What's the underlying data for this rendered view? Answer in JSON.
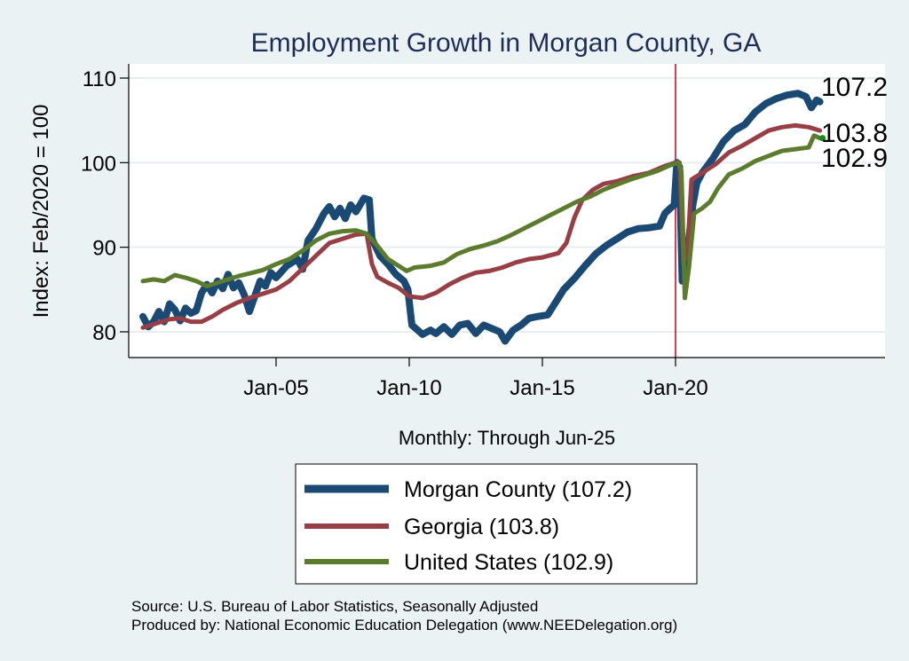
{
  "chart_data": {
    "type": "line",
    "title": "Employment Growth in Morgan  County, GA",
    "xlabel": "Monthly: Through Jun-25",
    "ylabel": "Index: Feb/2020 = 100",
    "ylim": [
      77.5,
      111.5
    ],
    "xlim": [
      1999.0,
      2027.42
    ],
    "yticks": [
      80,
      90,
      100,
      110
    ],
    "xticks": [
      {
        "label": "Jan-05",
        "value": 2005.0
      },
      {
        "label": "Jan-10",
        "value": 2010.0
      },
      {
        "label": "Jan-15",
        "value": 2015.0
      },
      {
        "label": "Jan-20",
        "value": 2020.0
      }
    ],
    "grid": true,
    "reference_line": {
      "x": 2020.0,
      "color": "#c8102e"
    },
    "legend_position": "bottom",
    "series": [
      {
        "name": "Morgan  County",
        "legend_label": "Morgan  County (107.2)",
        "end_value": "107.2",
        "color": "#1a4a73",
        "points": [
          [
            2000.0,
            81.8
          ],
          [
            2000.2,
            80.6
          ],
          [
            2000.4,
            81.2
          ],
          [
            2000.6,
            82.4
          ],
          [
            2000.8,
            81.2
          ],
          [
            2001.0,
            83.3
          ],
          [
            2001.2,
            82.6
          ],
          [
            2001.4,
            81.3
          ],
          [
            2001.6,
            82.8
          ],
          [
            2001.8,
            82.2
          ],
          [
            2002.0,
            82.5
          ],
          [
            2002.2,
            84.6
          ],
          [
            2002.4,
            85.6
          ],
          [
            2002.6,
            84.6
          ],
          [
            2002.8,
            86.0
          ],
          [
            2003.0,
            85.1
          ],
          [
            2003.2,
            86.8
          ],
          [
            2003.4,
            85.2
          ],
          [
            2003.6,
            85.8
          ],
          [
            2003.8,
            84.4
          ],
          [
            2004.0,
            82.4
          ],
          [
            2004.2,
            84.2
          ],
          [
            2004.4,
            86.0
          ],
          [
            2004.6,
            85.4
          ],
          [
            2004.8,
            87.0
          ],
          [
            2005.0,
            86.4
          ],
          [
            2005.4,
            87.8
          ],
          [
            2005.8,
            88.6
          ],
          [
            2006.0,
            87.4
          ],
          [
            2006.2,
            90.8
          ],
          [
            2006.5,
            92.2
          ],
          [
            2006.8,
            94.0
          ],
          [
            2007.0,
            94.8
          ],
          [
            2007.2,
            93.6
          ],
          [
            2007.4,
            94.6
          ],
          [
            2007.6,
            93.4
          ],
          [
            2007.8,
            95.0
          ],
          [
            2008.0,
            94.2
          ],
          [
            2008.3,
            95.8
          ],
          [
            2008.5,
            95.6
          ],
          [
            2008.6,
            91.0
          ],
          [
            2008.9,
            89.0
          ],
          [
            2009.2,
            88.0
          ],
          [
            2009.5,
            86.8
          ],
          [
            2009.8,
            86.0
          ],
          [
            2009.95,
            85.0
          ],
          [
            2010.1,
            80.8
          ],
          [
            2010.5,
            79.7
          ],
          [
            2010.8,
            80.2
          ],
          [
            2011.0,
            79.8
          ],
          [
            2011.3,
            80.6
          ],
          [
            2011.6,
            79.7
          ],
          [
            2011.9,
            80.8
          ],
          [
            2012.2,
            81.0
          ],
          [
            2012.5,
            79.8
          ],
          [
            2012.8,
            80.8
          ],
          [
            2013.1,
            80.4
          ],
          [
            2013.4,
            80.0
          ],
          [
            2013.6,
            78.9
          ],
          [
            2013.9,
            80.2
          ],
          [
            2014.2,
            80.8
          ],
          [
            2014.5,
            81.6
          ],
          [
            2014.8,
            81.8
          ],
          [
            2015.2,
            82.0
          ],
          [
            2015.5,
            83.5
          ],
          [
            2015.8,
            85.0
          ],
          [
            2016.2,
            86.3
          ],
          [
            2016.6,
            87.8
          ],
          [
            2017.0,
            89.2
          ],
          [
            2017.4,
            90.2
          ],
          [
            2017.8,
            91.0
          ],
          [
            2018.2,
            91.8
          ],
          [
            2018.6,
            92.2
          ],
          [
            2019.0,
            92.3
          ],
          [
            2019.4,
            92.5
          ],
          [
            2019.6,
            94.0
          ],
          [
            2019.8,
            94.6
          ],
          [
            2019.95,
            95.0
          ],
          [
            2020.05,
            100.0
          ],
          [
            2020.15,
            99.5
          ],
          [
            2020.25,
            86.0
          ],
          [
            2020.35,
            89.0
          ],
          [
            2020.5,
            91.0
          ],
          [
            2020.65,
            95.0
          ],
          [
            2020.8,
            97.6
          ],
          [
            2021.0,
            98.8
          ],
          [
            2021.4,
            100.5
          ],
          [
            2021.8,
            102.5
          ],
          [
            2022.2,
            103.8
          ],
          [
            2022.6,
            104.5
          ],
          [
            2023.0,
            106.0
          ],
          [
            2023.4,
            107.0
          ],
          [
            2023.8,
            107.6
          ],
          [
            2024.2,
            108.0
          ],
          [
            2024.6,
            108.2
          ],
          [
            2024.9,
            107.8
          ],
          [
            2025.1,
            106.5
          ],
          [
            2025.3,
            107.4
          ],
          [
            2025.42,
            107.2
          ]
        ]
      },
      {
        "name": "Georgia",
        "legend_label": "Georgia (103.8)",
        "end_value": "103.8",
        "color": "#983f46",
        "points": [
          [
            2000.0,
            80.5
          ],
          [
            2000.5,
            81.0
          ],
          [
            2001.0,
            81.5
          ],
          [
            2001.4,
            81.6
          ],
          [
            2001.8,
            81.2
          ],
          [
            2002.2,
            81.2
          ],
          [
            2002.6,
            81.8
          ],
          [
            2003.0,
            82.6
          ],
          [
            2003.5,
            83.4
          ],
          [
            2004.0,
            84.0
          ],
          [
            2004.5,
            84.5
          ],
          [
            2005.0,
            85.0
          ],
          [
            2005.5,
            86.0
          ],
          [
            2006.0,
            87.5
          ],
          [
            2006.5,
            89.0
          ],
          [
            2007.0,
            90.5
          ],
          [
            2007.5,
            91.0
          ],
          [
            2008.0,
            91.5
          ],
          [
            2008.4,
            91.6
          ],
          [
            2008.6,
            88.0
          ],
          [
            2008.8,
            86.5
          ],
          [
            2009.2,
            85.8
          ],
          [
            2009.6,
            85.2
          ],
          [
            2010.0,
            84.2
          ],
          [
            2010.5,
            84.0
          ],
          [
            2011.0,
            84.6
          ],
          [
            2011.5,
            85.6
          ],
          [
            2012.0,
            86.4
          ],
          [
            2012.5,
            87.0
          ],
          [
            2013.0,
            87.2
          ],
          [
            2013.5,
            87.6
          ],
          [
            2014.0,
            88.2
          ],
          [
            2014.5,
            88.6
          ],
          [
            2015.0,
            88.8
          ],
          [
            2015.6,
            89.3
          ],
          [
            2015.9,
            90.5
          ],
          [
            2016.2,
            93.5
          ],
          [
            2016.5,
            95.6
          ],
          [
            2016.9,
            96.8
          ],
          [
            2017.3,
            97.5
          ],
          [
            2017.8,
            97.8
          ],
          [
            2018.4,
            98.4
          ],
          [
            2019.0,
            98.8
          ],
          [
            2019.6,
            99.6
          ],
          [
            2020.0,
            100.0
          ],
          [
            2020.15,
            100.0
          ],
          [
            2020.3,
            88.0
          ],
          [
            2020.45,
            89.5
          ],
          [
            2020.6,
            98.0
          ],
          [
            2021.0,
            98.8
          ],
          [
            2021.5,
            99.8
          ],
          [
            2022.0,
            101.2
          ],
          [
            2022.5,
            102.0
          ],
          [
            2023.0,
            102.9
          ],
          [
            2023.5,
            103.8
          ],
          [
            2024.0,
            104.2
          ],
          [
            2024.5,
            104.4
          ],
          [
            2025.0,
            104.2
          ],
          [
            2025.42,
            103.8
          ]
        ]
      },
      {
        "name": "United States",
        "legend_label": "United States (102.9)",
        "end_value": "102.9",
        "color": "#5b7b2d",
        "points": [
          [
            2000.0,
            86.0
          ],
          [
            2000.4,
            86.2
          ],
          [
            2000.8,
            86.0
          ],
          [
            2001.2,
            86.7
          ],
          [
            2001.6,
            86.4
          ],
          [
            2002.0,
            86.0
          ],
          [
            2002.4,
            85.4
          ],
          [
            2002.8,
            85.8
          ],
          [
            2003.2,
            86.2
          ],
          [
            2003.6,
            86.6
          ],
          [
            2004.0,
            86.9
          ],
          [
            2004.5,
            87.3
          ],
          [
            2005.0,
            88.0
          ],
          [
            2005.5,
            88.6
          ],
          [
            2006.0,
            89.6
          ],
          [
            2006.5,
            90.8
          ],
          [
            2007.0,
            91.6
          ],
          [
            2007.5,
            91.9
          ],
          [
            2008.0,
            92.0
          ],
          [
            2008.4,
            91.6
          ],
          [
            2008.8,
            90.2
          ],
          [
            2009.2,
            88.6
          ],
          [
            2009.6,
            87.8
          ],
          [
            2009.9,
            87.2
          ],
          [
            2010.2,
            87.6
          ],
          [
            2010.8,
            87.8
          ],
          [
            2011.3,
            88.2
          ],
          [
            2011.8,
            89.2
          ],
          [
            2012.3,
            89.8
          ],
          [
            2012.8,
            90.2
          ],
          [
            2013.3,
            90.7
          ],
          [
            2013.8,
            91.4
          ],
          [
            2014.3,
            92.2
          ],
          [
            2014.8,
            93.0
          ],
          [
            2015.3,
            93.8
          ],
          [
            2015.8,
            94.6
          ],
          [
            2016.3,
            95.4
          ],
          [
            2016.8,
            96.0
          ],
          [
            2017.3,
            96.8
          ],
          [
            2017.8,
            97.4
          ],
          [
            2018.3,
            98.0
          ],
          [
            2018.8,
            98.5
          ],
          [
            2019.3,
            99.0
          ],
          [
            2019.8,
            99.7
          ],
          [
            2020.1,
            100.0
          ],
          [
            2020.22,
            99.0
          ],
          [
            2020.35,
            84.0
          ],
          [
            2020.5,
            87.5
          ],
          [
            2020.7,
            94.0
          ],
          [
            2021.0,
            94.6
          ],
          [
            2021.3,
            95.4
          ],
          [
            2021.6,
            97.0
          ],
          [
            2022.0,
            98.6
          ],
          [
            2022.5,
            99.3
          ],
          [
            2023.0,
            100.2
          ],
          [
            2023.5,
            100.8
          ],
          [
            2024.0,
            101.4
          ],
          [
            2024.5,
            101.6
          ],
          [
            2025.0,
            101.8
          ],
          [
            2025.2,
            103.2
          ],
          [
            2025.42,
            102.9
          ]
        ]
      }
    ]
  },
  "footer": {
    "source": "Source: U.S. Bureau of Labor Statistics, Seasonally Adjusted",
    "produced_by": "Produced by: National Economic Education Delegation (www.NEEDelegation.org)"
  }
}
